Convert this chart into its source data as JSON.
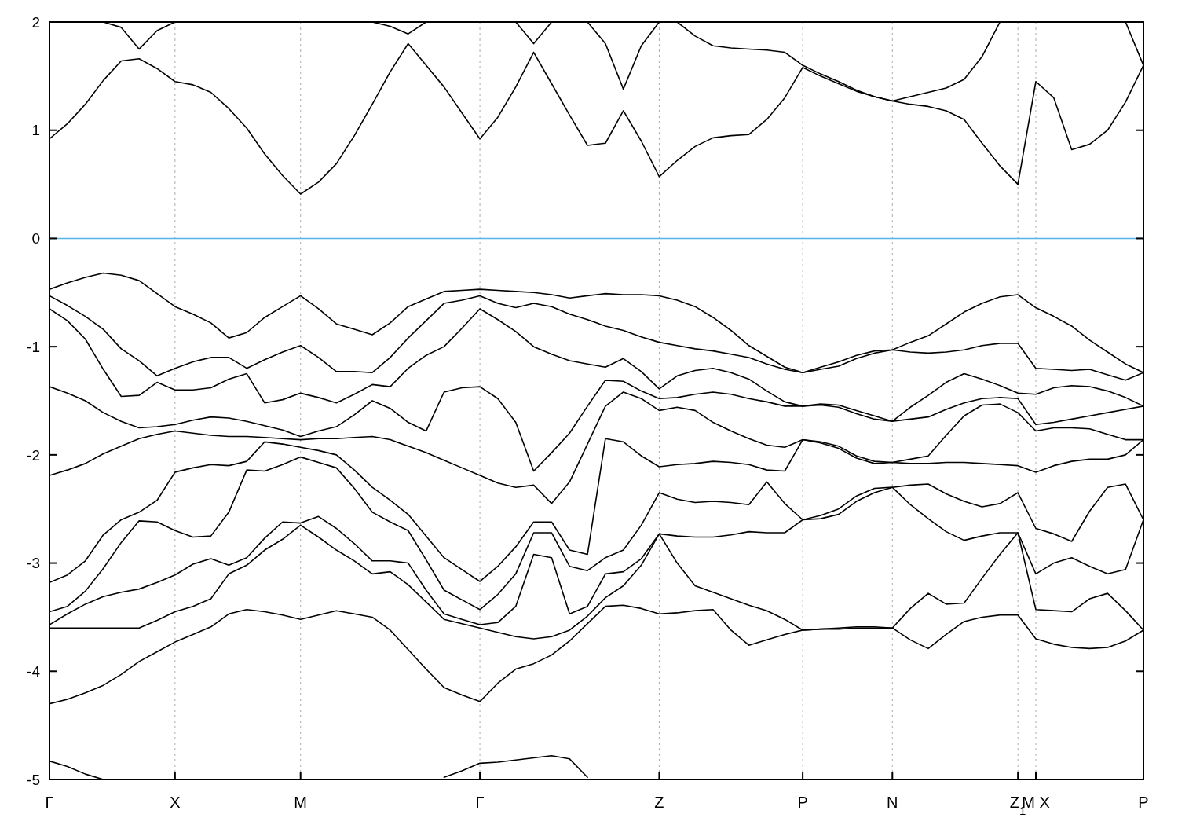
{
  "chart_data": {
    "type": "line",
    "categories": [
      "Γ",
      null,
      null,
      null,
      null,
      null,
      null,
      "X",
      null,
      null,
      null,
      null,
      null,
      null,
      "M",
      null,
      null,
      null,
      null,
      null,
      null,
      null,
      null,
      null,
      "Γ",
      null,
      null,
      null,
      null,
      null,
      null,
      null,
      null,
      null,
      "Z",
      null,
      null,
      null,
      null,
      null,
      null,
      null,
      "P",
      null,
      null,
      null,
      null,
      "N",
      null,
      null,
      null,
      null,
      null,
      null,
      "Z$_{1}$",
      "M X",
      null,
      null,
      null,
      null,
      null,
      "P"
    ],
    "ylim": [
      -5,
      2
    ],
    "yticks": [
      -5,
      -4,
      -3,
      -2,
      -1,
      0,
      1,
      2
    ],
    "grid": "x",
    "line_style": "solid",
    "ref_lines": [
      {
        "axis": "y",
        "value": 0,
        "color": "#56b4e9"
      }
    ],
    "series": [
      {
        "color": "#000000",
        "values": [
          -0.47,
          -0.41,
          -0.36,
          -0.32,
          -0.34,
          -0.39,
          -0.51,
          -0.63,
          -0.7,
          -0.78,
          -0.92,
          -0.87,
          -0.73,
          -0.63,
          -0.53,
          -0.65,
          -0.79,
          -0.84,
          -0.89,
          -0.78,
          -0.63,
          -0.56,
          -0.49,
          -0.48,
          -0.47,
          -0.48,
          -0.49,
          -0.5,
          -0.52,
          -0.55,
          -0.53,
          -0.51,
          -0.52,
          -0.52,
          -0.53,
          -0.57,
          -0.63,
          -0.73,
          -0.85,
          -0.99,
          -1.09,
          -1.19,
          -1.24,
          -1.19,
          -1.14,
          -1.08,
          -1.04,
          -1.03,
          -0.96,
          -0.9,
          -0.79,
          -0.68,
          -0.6,
          -0.54,
          -0.52,
          -0.64,
          -0.72,
          -0.81,
          -0.94,
          -1.05,
          -1.16,
          -1.24
        ]
      },
      {
        "color": "#000000",
        "values": [
          -0.53,
          -0.62,
          -0.72,
          -0.84,
          -1.02,
          -1.13,
          -1.27,
          -1.2,
          -1.14,
          -1.1,
          -1.1,
          -1.2,
          -1.12,
          -1.05,
          -0.99,
          -1.1,
          -1.23,
          -1.23,
          -1.24,
          -1.1,
          -0.92,
          -0.76,
          -0.6,
          -0.57,
          -0.53,
          -0.6,
          -0.64,
          -0.6,
          -0.63,
          -0.7,
          -0.75,
          -0.81,
          -0.85,
          -0.91,
          -0.96,
          -0.99,
          -1.02,
          -1.04,
          -1.07,
          -1.1,
          -1.16,
          -1.21,
          -1.24,
          -1.21,
          -1.18,
          -1.11,
          -1.06,
          -1.03,
          -1.05,
          -1.06,
          -1.05,
          -1.03,
          -0.99,
          -0.97,
          -0.97,
          -1.2,
          -1.21,
          -1.22,
          -1.21,
          -1.26,
          -1.31,
          -1.24
        ]
      },
      {
        "color": "#000000",
        "values": [
          -0.65,
          -0.76,
          -0.93,
          -1.21,
          -1.46,
          -1.45,
          -1.33,
          -1.4,
          -1.4,
          -1.38,
          -1.3,
          -1.25,
          -1.52,
          -1.49,
          -1.43,
          -1.47,
          -1.52,
          -1.44,
          -1.35,
          -1.37,
          -1.2,
          -1.08,
          -1.0,
          -0.83,
          -0.65,
          -0.75,
          -0.86,
          -1.0,
          -1.07,
          -1.13,
          -1.16,
          -1.19,
          -1.11,
          -1.23,
          -1.39,
          -1.27,
          -1.22,
          -1.2,
          -1.24,
          -1.3,
          -1.41,
          -1.51,
          -1.55,
          -1.53,
          -1.54,
          -1.59,
          -1.64,
          -1.69,
          -1.56,
          -1.45,
          -1.33,
          -1.25,
          -1.3,
          -1.36,
          -1.43,
          -1.44,
          -1.38,
          -1.36,
          -1.37,
          -1.41,
          -1.47,
          -1.55
        ]
      },
      {
        "color": "#000000",
        "values": [
          -1.37,
          -1.43,
          -1.5,
          -1.61,
          -1.69,
          -1.75,
          -1.74,
          -1.72,
          -1.68,
          -1.65,
          -1.66,
          -1.69,
          -1.73,
          -1.77,
          -1.83,
          -1.78,
          -1.74,
          -1.63,
          -1.5,
          -1.57,
          -1.7,
          -1.78,
          -1.42,
          -1.38,
          -1.37,
          -1.48,
          -1.7,
          -2.15,
          -1.98,
          -1.8,
          -1.55,
          -1.31,
          -1.32,
          -1.41,
          -1.48,
          -1.47,
          -1.44,
          -1.42,
          -1.44,
          -1.48,
          -1.51,
          -1.55,
          -1.55,
          -1.54,
          -1.56,
          -1.62,
          -1.67,
          -1.69,
          -1.67,
          -1.65,
          -1.58,
          -1.52,
          -1.48,
          -1.47,
          -1.48,
          -1.72,
          -1.7,
          -1.67,
          -1.64,
          -1.61,
          -1.58,
          -1.55
        ]
      },
      {
        "color": "#000000",
        "values": [
          -2.19,
          -2.14,
          -2.08,
          -1.99,
          -1.92,
          -1.85,
          -1.81,
          -1.78,
          -1.8,
          -1.82,
          -1.83,
          -1.83,
          -1.84,
          -1.85,
          -1.86,
          -1.85,
          -1.85,
          -1.84,
          -1.83,
          -1.86,
          -1.92,
          -1.98,
          -2.05,
          -2.12,
          -2.19,
          -2.26,
          -2.3,
          -2.28,
          -2.45,
          -2.25,
          -1.9,
          -1.55,
          -1.42,
          -1.48,
          -1.59,
          -1.56,
          -1.59,
          -1.7,
          -1.78,
          -1.85,
          -1.91,
          -1.93,
          -1.86,
          -1.88,
          -1.92,
          -2.01,
          -2.06,
          -2.07,
          -2.04,
          -2.01,
          -1.82,
          -1.64,
          -1.54,
          -1.53,
          -1.61,
          -1.78,
          -1.75,
          -1.75,
          -1.76,
          -1.81,
          -1.86,
          -1.86
        ]
      },
      {
        "color": "#000000",
        "values": [
          -3.18,
          -3.11,
          -2.98,
          -2.74,
          -2.6,
          -2.53,
          -2.42,
          -2.16,
          -2.12,
          -2.09,
          -2.1,
          -2.06,
          -1.88,
          -1.9,
          -1.93,
          -1.96,
          -2.0,
          -2.14,
          -2.3,
          -2.42,
          -2.55,
          -2.75,
          -2.95,
          -3.06,
          -3.17,
          -3.03,
          -2.85,
          -2.62,
          -2.62,
          -2.88,
          -2.92,
          -1.85,
          -1.88,
          -2.01,
          -2.11,
          -2.09,
          -2.08,
          -2.06,
          -2.07,
          -2.09,
          -2.14,
          -2.15,
          -1.86,
          -1.89,
          -1.94,
          -2.03,
          -2.08,
          -2.07,
          -2.08,
          -2.08,
          -2.07,
          -2.07,
          -2.08,
          -2.09,
          -2.1,
          -2.16,
          -2.1,
          -2.06,
          -2.04,
          -2.04,
          -2.0,
          -1.86
        ]
      },
      {
        "color": "#000000",
        "values": [
          -3.45,
          -3.4,
          -3.26,
          -3.05,
          -2.81,
          -2.61,
          -2.62,
          -2.7,
          -2.76,
          -2.75,
          -2.53,
          -2.14,
          -2.15,
          -2.09,
          -2.02,
          -2.07,
          -2.12,
          -2.31,
          -2.53,
          -2.62,
          -2.7,
          -2.97,
          -3.25,
          -3.34,
          -3.43,
          -3.29,
          -3.1,
          -2.72,
          -2.72,
          -3.03,
          -3.07,
          -2.95,
          -2.88,
          -2.65,
          -2.35,
          -2.41,
          -2.44,
          -2.43,
          -2.44,
          -2.46,
          -2.25,
          -2.45,
          -2.6,
          -2.56,
          -2.5,
          -2.38,
          -2.31,
          -2.3,
          -2.28,
          -2.27,
          -2.36,
          -2.43,
          -2.48,
          -2.45,
          -2.35,
          -2.68,
          -2.73,
          -2.8,
          -2.52,
          -2.3,
          -2.27,
          -2.6
        ]
      },
      {
        "color": "#000000",
        "values": [
          -3.57,
          -3.47,
          -3.38,
          -3.31,
          -3.27,
          -3.24,
          -3.18,
          -3.11,
          -3.01,
          -2.96,
          -3.02,
          -2.95,
          -2.77,
          -2.62,
          -2.63,
          -2.57,
          -2.68,
          -2.82,
          -2.98,
          -2.98,
          -3.0,
          -3.25,
          -3.47,
          -3.52,
          -3.57,
          -3.55,
          -3.4,
          -2.92,
          -2.95,
          -3.47,
          -3.4,
          -3.1,
          -3.08,
          -2.96,
          -2.73,
          -2.75,
          -2.76,
          -2.76,
          -2.74,
          -2.71,
          -2.72,
          -2.72,
          -2.6,
          -2.59,
          -2.55,
          -2.43,
          -2.35,
          -2.3,
          -2.46,
          -2.59,
          -2.71,
          -2.79,
          -2.75,
          -2.72,
          -2.72,
          -3.1,
          -3.0,
          -2.95,
          -3.03,
          -3.1,
          -3.06,
          -2.6
        ]
      },
      {
        "color": "#000000",
        "values": [
          -3.6,
          -3.6,
          -3.6,
          -3.6,
          -3.6,
          -3.6,
          -3.53,
          -3.45,
          -3.4,
          -3.33,
          -3.1,
          -3.02,
          -2.88,
          -2.78,
          -2.65,
          -2.76,
          -2.88,
          -2.98,
          -3.1,
          -3.08,
          -3.2,
          -3.36,
          -3.52,
          -3.56,
          -3.6,
          -3.64,
          -3.68,
          -3.7,
          -3.68,
          -3.62,
          -3.49,
          -3.32,
          -3.21,
          -3.02,
          -2.73,
          -3.0,
          -3.21,
          -3.27,
          -3.33,
          -3.39,
          -3.44,
          -3.52,
          -3.62,
          -3.61,
          -3.6,
          -3.59,
          -3.59,
          -3.6,
          -3.42,
          -3.28,
          -3.38,
          -3.37,
          -3.14,
          -2.92,
          -2.72,
          -3.43,
          -3.44,
          -3.45,
          -3.33,
          -3.28,
          -3.44,
          -3.62
        ]
      },
      {
        "color": "#000000",
        "values": [
          -4.3,
          -4.26,
          -4.2,
          -4.13,
          -4.03,
          -3.91,
          -3.82,
          -3.73,
          -3.66,
          -3.59,
          -3.47,
          -3.43,
          -3.45,
          -3.48,
          -3.52,
          -3.48,
          -3.44,
          -3.47,
          -3.5,
          -3.62,
          -3.8,
          -3.98,
          -4.15,
          -4.22,
          -4.28,
          -4.11,
          -3.98,
          -3.93,
          -3.85,
          -3.72,
          -3.56,
          -3.4,
          -3.39,
          -3.42,
          -3.47,
          -3.46,
          -3.44,
          -3.43,
          -3.62,
          -3.76,
          -3.71,
          -3.66,
          -3.62,
          -3.61,
          -3.61,
          -3.6,
          -3.6,
          -3.6,
          -3.71,
          -3.79,
          -3.66,
          -3.54,
          -3.5,
          -3.48,
          -3.48,
          -3.7,
          -3.75,
          -3.78,
          -3.79,
          -3.78,
          -3.72,
          -3.62
        ]
      },
      {
        "color": "#000000",
        "values": [
          -4.83,
          -4.88,
          -4.95,
          -5.0,
          null,
          null,
          null,
          null,
          null,
          null,
          null,
          null,
          null,
          null,
          null,
          null,
          null,
          null,
          null,
          null,
          null,
          null,
          -4.98,
          -4.92,
          -4.85,
          -4.84,
          -4.82,
          -4.8,
          -4.78,
          -4.81,
          -4.98,
          null,
          null,
          null,
          null,
          null,
          null,
          null,
          null,
          null,
          null,
          null,
          null,
          null,
          null,
          null,
          null,
          null,
          null,
          null,
          null,
          null,
          null,
          null,
          null,
          null,
          null,
          null,
          null,
          null,
          null,
          null
        ]
      },
      {
        "color": "#000000",
        "values": [
          0.92,
          1.06,
          1.24,
          1.46,
          1.64,
          1.66,
          1.57,
          1.45,
          1.42,
          1.35,
          1.2,
          1.02,
          0.78,
          0.58,
          0.41,
          0.52,
          0.69,
          0.95,
          1.24,
          1.54,
          1.8,
          1.6,
          1.4,
          1.16,
          0.92,
          1.12,
          1.4,
          1.72,
          1.43,
          1.14,
          0.86,
          0.88,
          1.18,
          0.9,
          0.57,
          0.72,
          0.85,
          0.93,
          0.95,
          0.96,
          1.1,
          1.3,
          1.58,
          1.5,
          1.43,
          1.36,
          1.31,
          1.27,
          1.24,
          1.22,
          1.18,
          1.1,
          0.88,
          0.67,
          0.5,
          1.45,
          1.3,
          0.82,
          0.87,
          1.0,
          1.26,
          1.6
        ]
      },
      {
        "color": "#000000",
        "values": [
          null,
          null,
          null,
          2.0,
          1.95,
          1.75,
          1.92,
          2.0,
          null,
          null,
          null,
          null,
          null,
          null,
          null,
          null,
          null,
          null,
          2.0,
          1.96,
          1.89,
          2.0,
          null,
          null,
          null,
          null,
          2.0,
          1.8,
          2.0,
          null,
          2.0,
          1.8,
          1.38,
          1.78,
          2.0,
          2.0,
          1.87,
          1.78,
          1.76,
          1.75,
          1.74,
          1.72,
          1.6,
          1.52,
          1.45,
          1.37,
          1.31,
          1.27,
          1.31,
          1.35,
          1.39,
          1.47,
          1.68,
          2.0,
          null,
          null,
          null,
          null,
          null,
          null,
          2.0,
          1.6
        ]
      }
    ]
  }
}
